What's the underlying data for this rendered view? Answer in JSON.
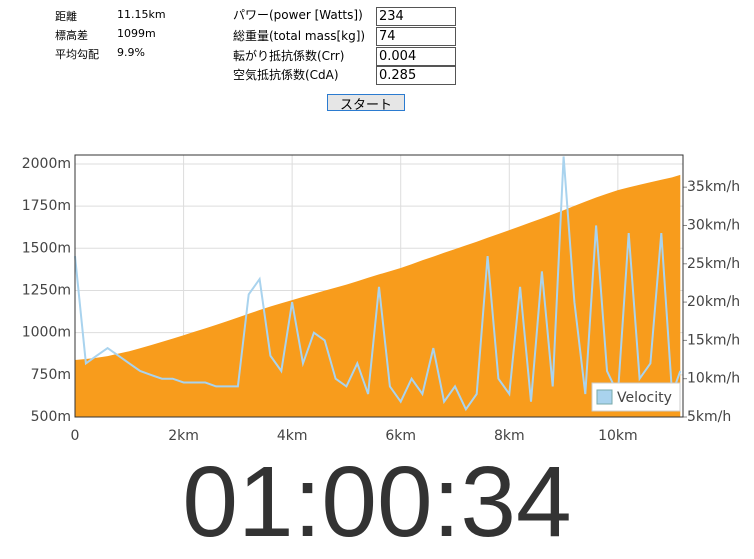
{
  "info": {
    "rows": [
      [
        "距離",
        "11.15km"
      ],
      [
        "標高差",
        "1099m"
      ],
      [
        "平均勾配",
        "9.9%"
      ]
    ]
  },
  "form": {
    "fields": [
      {
        "label": "パワー(power [Watts])",
        "value": "234"
      },
      {
        "label": "総重量(total mass[kg])",
        "value": "74"
      },
      {
        "label": "転がり抵抗係数(Crr)",
        "value": "0.004"
      },
      {
        "label": "空気抵抗係数(CdA)",
        "value": "0.285"
      }
    ],
    "button": "スタート"
  },
  "chart_data": {
    "type": "line",
    "x": [
      0,
      0.2,
      0.4,
      0.6,
      0.8,
      1.0,
      1.2,
      1.4,
      1.6,
      1.8,
      2.0,
      2.2,
      2.4,
      2.6,
      2.8,
      3.0,
      3.2,
      3.4,
      3.6,
      3.8,
      4.0,
      4.2,
      4.4,
      4.6,
      4.8,
      5.0,
      5.2,
      5.4,
      5.6,
      5.8,
      6.0,
      6.2,
      6.4,
      6.6,
      6.8,
      7.0,
      7.2,
      7.4,
      7.6,
      7.8,
      8.0,
      8.2,
      8.4,
      8.6,
      8.8,
      9.0,
      9.2,
      9.4,
      9.6,
      9.8,
      10.0,
      10.2,
      10.4,
      10.6,
      10.8,
      11.0,
      11.15
    ],
    "series": [
      {
        "kind": "area",
        "color": "#f89c1c",
        "axis": "y",
        "values": [
          838,
          844,
          851,
          861,
          876,
          890,
          908,
          926,
          945,
          965,
          985,
          1005,
          1025,
          1046,
          1068,
          1090,
          1112,
          1134,
          1155,
          1174,
          1193,
          1212,
          1231,
          1249,
          1267,
          1285,
          1305,
          1325,
          1345,
          1364,
          1383,
          1406,
          1429,
          1451,
          1473,
          1495,
          1517,
          1539,
          1562,
          1585,
          1608,
          1631,
          1654,
          1677,
          1701,
          1725,
          1751,
          1777,
          1801,
          1823,
          1845,
          1861,
          1877,
          1892,
          1906,
          1920,
          1935
        ]
      },
      {
        "name": "Velocity",
        "kind": "line",
        "color": "#a9d3ee",
        "axis": "y2",
        "values": [
          26,
          12,
          13,
          14,
          13,
          12,
          11,
          10.5,
          10,
          10,
          9.5,
          9.5,
          9.5,
          9,
          9,
          9,
          21,
          23,
          13,
          11,
          20,
          12,
          16,
          15,
          10,
          9,
          12,
          8,
          22,
          9,
          7,
          10,
          8,
          14,
          7,
          9,
          6,
          8,
          26,
          10,
          8,
          22,
          7,
          24,
          9,
          39,
          20,
          8,
          30,
          11,
          8,
          29,
          10,
          12,
          29,
          8,
          11
        ]
      }
    ],
    "xlim": [
      0,
      11.2
    ],
    "xticks": [
      0,
      {
        "value": 2,
        "label": "2km"
      },
      {
        "value": 4,
        "label": "4km"
      },
      {
        "value": 6,
        "label": "6km"
      },
      {
        "value": 8,
        "label": "8km"
      },
      {
        "value": 10,
        "label": "10km"
      }
    ],
    "ylim": [
      500,
      2053
    ],
    "yticks": [
      {
        "value": 500,
        "label": "500m"
      },
      {
        "value": 750,
        "label": "750m"
      },
      {
        "value": 1000,
        "label": "1000m"
      },
      {
        "value": 1250,
        "label": "1250m"
      },
      {
        "value": 1500,
        "label": "1500m"
      },
      {
        "value": 1750,
        "label": "1750m"
      },
      {
        "value": 2000,
        "label": "2000m"
      }
    ],
    "y2lim": [
      5,
      39.2
    ],
    "y2ticks": [
      {
        "value": 5,
        "label": "5km/h"
      },
      {
        "value": 10,
        "label": "10km/h"
      },
      {
        "value": 15,
        "label": "15km/h"
      },
      {
        "value": 20,
        "label": "20km/h"
      },
      {
        "value": 25,
        "label": "25km/h"
      },
      {
        "value": 30,
        "label": "30km/h"
      },
      {
        "value": 35,
        "label": "35km/h"
      }
    ],
    "grid": true,
    "legend": "bottom-right"
  },
  "timer": "01:00:34"
}
